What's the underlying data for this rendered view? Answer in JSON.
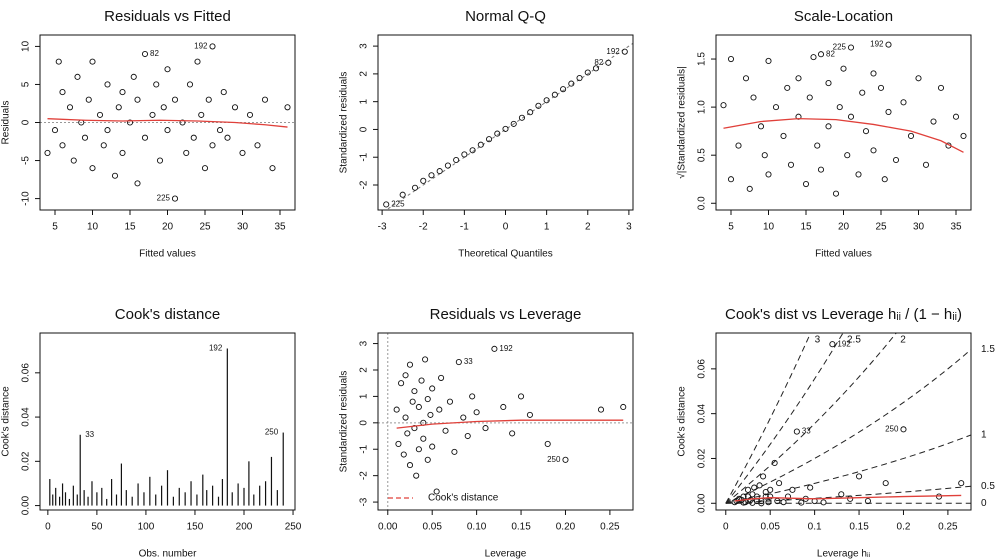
{
  "chart_data": [
    {
      "type": "scatter",
      "title": "Residuals vs Fitted",
      "xlabel": "Fitted values",
      "ylabel": "Residuals",
      "xlim": [
        3,
        37
      ],
      "xticks": [
        5,
        10,
        15,
        20,
        25,
        30,
        35
      ],
      "ylim": [
        -11.5,
        11.5
      ],
      "yticks": [
        -10,
        -5,
        0,
        5,
        10
      ],
      "hline": 0,
      "x": [
        4,
        5,
        5.5,
        6,
        6,
        7,
        7.5,
        8,
        8.5,
        9,
        9.5,
        10,
        10,
        11,
        11.5,
        12,
        12,
        13,
        13.5,
        14,
        14,
        15,
        15.5,
        16,
        16,
        17,
        17,
        18,
        18.5,
        19,
        19.5,
        20,
        20,
        21,
        21,
        22,
        22.5,
        23,
        23.5,
        24,
        24.5,
        25,
        25.5,
        26,
        26,
        27,
        27.5,
        28,
        29,
        30,
        31,
        32,
        33,
        34,
        36
      ],
      "y": [
        -4,
        -1,
        8,
        4,
        -3,
        2,
        -5,
        6,
        0,
        -2,
        3,
        8,
        -6,
        1,
        -3,
        5,
        -1,
        -7,
        2,
        4,
        -4,
        0,
        6,
        -8,
        3,
        9,
        -2,
        1,
        5,
        -5,
        2,
        7,
        -1,
        -10,
        3,
        0,
        -4,
        5,
        -2,
        8,
        1,
        -6,
        3,
        10,
        -3,
        -1,
        4,
        -2,
        2,
        -4,
        1,
        -3,
        3,
        -6,
        2
      ],
      "smooth": {
        "x": [
          4,
          9,
          14,
          19,
          24,
          29,
          33,
          36
        ],
        "y": [
          0.5,
          0.3,
          0.2,
          0.3,
          0.2,
          0,
          -0.3,
          -0.6
        ],
        "color": "#e0403a"
      },
      "annotations": [
        {
          "text": "192",
          "x": 26,
          "y": 10
        },
        {
          "text": "82",
          "x": 17,
          "y": 9
        },
        {
          "text": "225",
          "x": 21,
          "y": -10
        }
      ]
    },
    {
      "type": "scatter",
      "title": "Normal Q-Q",
      "xlabel": "Theoretical Quantiles",
      "ylabel": "Standardized residuals",
      "xlim": [
        -3.1,
        3.1
      ],
      "xticks": [
        -3,
        -2,
        -1,
        0,
        1,
        2,
        3
      ],
      "ylim": [
        -2.9,
        3.4
      ],
      "yticks": [
        -2,
        -1,
        0,
        1,
        2,
        3
      ],
      "reference_line": {
        "slope": 1,
        "intercept": 0
      },
      "x": [
        -2.9,
        -2.5,
        -2.2,
        -2.0,
        -1.8,
        -1.6,
        -1.4,
        -1.2,
        -1.0,
        -0.8,
        -0.6,
        -0.4,
        -0.2,
        0,
        0.2,
        0.4,
        0.6,
        0.8,
        1.0,
        1.2,
        1.4,
        1.6,
        1.8,
        2.0,
        2.2,
        2.5,
        2.9
      ],
      "y": [
        -2.7,
        -2.35,
        -2.1,
        -1.85,
        -1.65,
        -1.5,
        -1.3,
        -1.1,
        -0.9,
        -0.75,
        -0.55,
        -0.35,
        -0.15,
        0.02,
        0.2,
        0.42,
        0.62,
        0.85,
        1.05,
        1.25,
        1.45,
        1.65,
        1.85,
        2.05,
        2.2,
        2.4,
        2.8
      ],
      "annotations": [
        {
          "text": "225",
          "x": -2.9,
          "y": -2.7
        },
        {
          "text": "192",
          "x": 2.9,
          "y": 2.8
        },
        {
          "text": "82",
          "x": 2.5,
          "y": 2.4
        }
      ]
    },
    {
      "type": "scatter",
      "title": "Scale-Location",
      "xlabel": "Fitted values",
      "ylabel": "√|Standardized residuals|",
      "xlim": [
        3,
        37
      ],
      "xticks": [
        5,
        10,
        15,
        20,
        25,
        30,
        35
      ],
      "ylim": [
        -0.07,
        1.75
      ],
      "yticks": [
        {
          "value": 0,
          "label": "0.0"
        },
        {
          "value": 0.5,
          "label": "0.5"
        },
        {
          "value": 1,
          "label": "1.0"
        },
        {
          "value": 1.5,
          "label": "1.5"
        }
      ],
      "x": [
        4,
        5,
        5,
        6,
        7,
        7.5,
        8,
        9,
        9.5,
        10,
        10,
        11,
        12,
        12.5,
        13,
        14,
        14,
        15,
        15.5,
        16,
        16.5,
        17,
        17,
        18,
        18,
        19,
        19.5,
        20,
        20.5,
        21,
        21,
        22,
        22.5,
        23,
        24,
        24,
        25,
        25.5,
        26,
        26,
        27,
        28,
        29,
        30,
        31,
        32,
        33,
        34,
        35,
        36
      ],
      "y": [
        1.02,
        0.25,
        1.5,
        0.6,
        1.3,
        0.15,
        1.1,
        0.8,
        0.5,
        1.48,
        0.3,
        1.0,
        0.7,
        1.2,
        0.4,
        1.3,
        0.9,
        0.2,
        1.1,
        1.52,
        0.6,
        1.55,
        0.35,
        1.25,
        0.8,
        0.1,
        1.0,
        1.4,
        0.5,
        1.62,
        0.9,
        0.3,
        1.15,
        0.75,
        1.35,
        0.55,
        1.2,
        0.25,
        1.65,
        0.95,
        0.45,
        1.05,
        0.7,
        1.3,
        0.4,
        0.85,
        1.2,
        0.6,
        0.9,
        0.7
      ],
      "smooth": {
        "x": [
          4,
          9,
          14,
          19,
          24,
          29,
          33,
          36
        ],
        "y": [
          0.78,
          0.85,
          0.88,
          0.87,
          0.82,
          0.75,
          0.65,
          0.53
        ],
        "color": "#e0403a"
      },
      "annotations": [
        {
          "text": "82",
          "x": 17,
          "y": 1.55
        },
        {
          "text": "225",
          "x": 21,
          "y": 1.62
        },
        {
          "text": "192",
          "x": 26,
          "y": 1.65
        }
      ]
    },
    {
      "type": "bar",
      "title": "Cook's distance",
      "xlabel": "Obs. number",
      "ylabel": "Cook's distance",
      "xlim": [
        -8,
        252
      ],
      "xticks": [
        0,
        50,
        100,
        150,
        200,
        250
      ],
      "ylim": [
        -0.002,
        0.078
      ],
      "yticks": [
        {
          "value": 0,
          "label": "0.00"
        },
        {
          "value": 0.02,
          "label": "0.02"
        },
        {
          "value": 0.04,
          "label": "0.04"
        },
        {
          "value": 0.06,
          "label": "0.06"
        }
      ],
      "x": [
        2,
        5,
        8,
        12,
        15,
        18,
        22,
        26,
        30,
        33,
        37,
        41,
        45,
        50,
        55,
        60,
        65,
        70,
        75,
        80,
        86,
        92,
        98,
        104,
        110,
        116,
        122,
        128,
        134,
        140,
        146,
        152,
        158,
        162,
        168,
        174,
        178,
        183,
        188,
        194,
        200,
        205,
        210,
        216,
        222,
        228,
        234,
        240
      ],
      "values": [
        0.012,
        0.005,
        0.008,
        0.004,
        0.01,
        0.006,
        0.003,
        0.009,
        0.005,
        0.032,
        0.007,
        0.004,
        0.011,
        0.006,
        0.008,
        0.003,
        0.012,
        0.005,
        0.019,
        0.007,
        0.004,
        0.01,
        0.006,
        0.013,
        0.005,
        0.009,
        0.016,
        0.004,
        0.008,
        0.006,
        0.011,
        0.005,
        0.014,
        0.007,
        0.009,
        0.004,
        0.012,
        0.071,
        0.006,
        0.01,
        0.008,
        0.02,
        0.005,
        0.009,
        0.011,
        0.022,
        0.007,
        0.033
      ],
      "annotations": [
        {
          "text": "33",
          "x": 33,
          "y": 0.032
        },
        {
          "text": "192",
          "x": 183,
          "y": 0.071
        },
        {
          "text": "250",
          "x": 240,
          "y": 0.033
        }
      ]
    },
    {
      "type": "scatter",
      "title": "Residuals vs Leverage",
      "xlabel": "Leverage",
      "ylabel": "Standardized residuals",
      "xlim": [
        -0.011,
        0.276
      ],
      "ylim": [
        -3.3,
        3.4
      ],
      "yticks": [
        -3,
        -2,
        -1,
        0,
        1,
        2,
        3
      ],
      "hline": 0,
      "vline": 0,
      "xticks": [
        {
          "value": 0,
          "label": "0.00"
        },
        {
          "value": 0.05,
          "label": "0.05"
        },
        {
          "value": 0.1,
          "label": "0.10"
        },
        {
          "value": 0.15,
          "label": "0.15"
        },
        {
          "value": 0.2,
          "label": "0.20"
        },
        {
          "value": 0.25,
          "label": "0.25"
        }
      ],
      "x": [
        0.01,
        0.012,
        0.015,
        0.018,
        0.02,
        0.02,
        0.022,
        0.025,
        0.025,
        0.028,
        0.03,
        0.03,
        0.032,
        0.035,
        0.035,
        0.038,
        0.04,
        0.04,
        0.042,
        0.045,
        0.045,
        0.048,
        0.05,
        0.05,
        0.055,
        0.058,
        0.06,
        0.065,
        0.07,
        0.075,
        0.08,
        0.085,
        0.09,
        0.095,
        0.1,
        0.11,
        0.12,
        0.13,
        0.14,
        0.15,
        0.16,
        0.18,
        0.2,
        0.24,
        0.265
      ],
      "y": [
        0.5,
        -0.8,
        1.5,
        -1.2,
        0.2,
        1.8,
        -0.4,
        2.2,
        -1.6,
        0.8,
        -0.2,
        1.2,
        -2.0,
        0.6,
        -1.0,
        1.6,
        0.0,
        -0.6,
        2.4,
        0.9,
        -1.4,
        0.3,
        1.3,
        -0.9,
        -2.6,
        0.5,
        1.7,
        -0.3,
        0.8,
        -1.1,
        2.3,
        0.2,
        -0.5,
        1.0,
        0.4,
        -0.2,
        2.8,
        0.6,
        -0.4,
        1.0,
        0.3,
        -0.8,
        -1.4,
        0.5,
        0.6
      ],
      "smooth": {
        "x": [
          0.01,
          0.05,
          0.1,
          0.15,
          0.2,
          0.265
        ],
        "y": [
          -0.2,
          -0.05,
          0.05,
          0.1,
          0.1,
          0.1
        ],
        "color": "#e0403a"
      },
      "legend": {
        "position": "bottomleft",
        "name": "Cook's distance",
        "color": "#e0403a"
      },
      "annotations": [
        {
          "text": "192",
          "x": 0.12,
          "y": 2.8
        },
        {
          "text": "33",
          "x": 0.08,
          "y": 2.3
        },
        {
          "text": "250",
          "x": 0.2,
          "y": -1.4
        }
      ]
    },
    {
      "type": "scatter",
      "title": "Cook's dist vs Leverage  hᵢᵢ / (1 − hᵢᵢ)",
      "xlabel": "Leverage  hᵢᵢ",
      "ylabel": "Cook's distance",
      "xlim": [
        -0.011,
        0.276
      ],
      "ylim": [
        -0.003,
        0.076
      ],
      "xticks": [
        0,
        0.05,
        0.1,
        0.15,
        0.2,
        0.25
      ],
      "yticks": [
        {
          "value": 0,
          "label": "0.00"
        },
        {
          "value": 0.02,
          "label": "0.02"
        },
        {
          "value": 0.04,
          "label": "0.04"
        },
        {
          "value": 0.06,
          "label": "0.06"
        }
      ],
      "contours": [
        0,
        0.5,
        1,
        1.5,
        2,
        2.5,
        3
      ],
      "x": [
        0.01,
        0.012,
        0.015,
        0.018,
        0.02,
        0.02,
        0.022,
        0.025,
        0.025,
        0.028,
        0.03,
        0.03,
        0.032,
        0.035,
        0.035,
        0.038,
        0.04,
        0.04,
        0.042,
        0.045,
        0.045,
        0.048,
        0.05,
        0.05,
        0.055,
        0.058,
        0.06,
        0.065,
        0.07,
        0.075,
        0.08,
        0.085,
        0.09,
        0.095,
        0.1,
        0.11,
        0.12,
        0.13,
        0.14,
        0.15,
        0.16,
        0.18,
        0.2,
        0.24,
        0.265
      ],
      "y": [
        0.0005,
        0.001,
        0.002,
        0.0015,
        0.0003,
        0.003,
        0.0005,
        0.006,
        0.003,
        0.0015,
        0.0002,
        0.004,
        0.007,
        0.001,
        0.003,
        0.008,
        0.0,
        0.001,
        0.012,
        0.003,
        0.005,
        0.0005,
        0.006,
        0.003,
        0.018,
        0.001,
        0.009,
        0.0005,
        0.003,
        0.006,
        0.032,
        0.0003,
        0.002,
        0.007,
        0.001,
        0.0004,
        0.071,
        0.004,
        0.002,
        0.012,
        0.001,
        0.009,
        0.033,
        0.003,
        0.009
      ],
      "smooth": {
        "x": [
          0.01,
          0.03,
          0.05,
          0.1,
          0.15,
          0.2,
          0.265
        ],
        "y": [
          0.001,
          0.002,
          0.0025,
          0.002,
          0.0025,
          0.003,
          0.0035
        ],
        "color": "#e0403a"
      },
      "annotations": [
        {
          "text": "192",
          "x": 0.12,
          "y": 0.071
        },
        {
          "text": "33",
          "x": 0.08,
          "y": 0.032
        },
        {
          "text": "250",
          "x": 0.2,
          "y": 0.033
        }
      ]
    }
  ]
}
